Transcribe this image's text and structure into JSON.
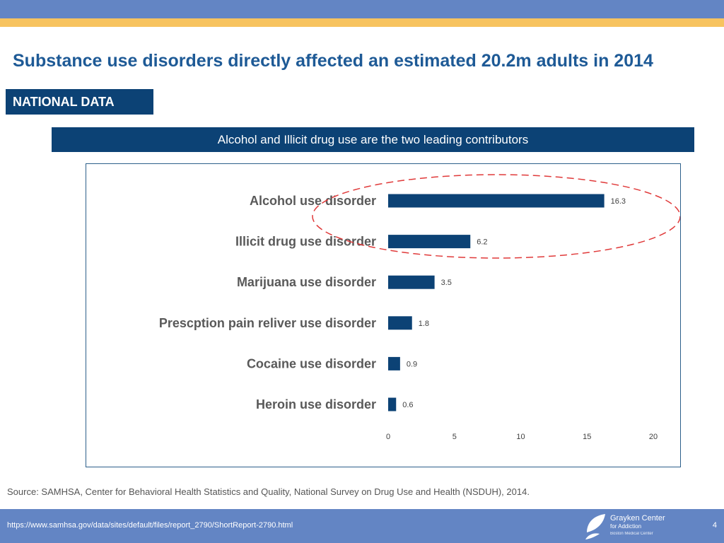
{
  "header": {
    "title": "Substance use disorders directly affected an estimated 20.2m adults in 2014",
    "tag": "NATIONAL DATA",
    "subtitle": "Alcohol and Illicit drug use are the two leading contributors"
  },
  "colors": {
    "bar": "#0c4275",
    "highlight": "#e03a3a",
    "accent_blue": "#6385c4",
    "accent_gold": "#f7c35f"
  },
  "chart_data": {
    "type": "bar",
    "orientation": "horizontal",
    "categories": [
      "Alcohol use disorder",
      "Illicit drug use disorder",
      "Marijuana use disorder",
      "Prescption pain reliver use disorder",
      "Cocaine use disorder",
      "Heroin use disorder"
    ],
    "values": [
      16.3,
      6.2,
      3.5,
      1.8,
      0.9,
      0.6
    ],
    "value_labels": [
      "16.3",
      "6.2",
      "3.5",
      "1.8",
      "0.9",
      "0.6"
    ],
    "xlim": [
      0,
      20
    ],
    "xticks": [
      0,
      5,
      10,
      15,
      20
    ],
    "xtick_labels": [
      "0",
      "5",
      "10",
      "15",
      "20"
    ],
    "highlighted_categories": [
      "Alcohol use disorder",
      "Illicit drug use disorder"
    ],
    "grid": false,
    "title": "",
    "xlabel": "",
    "ylabel": ""
  },
  "footer": {
    "source": "Source: SAMHSA, Center for Behavioral Health Statistics and Quality, National Survey on Drug Use and Health (NSDUH), 2014.",
    "url": "https://www.samhsa.gov/data/sites/default/files/report_2790/ShortReport-2790.html",
    "logo_line1": "Grayken Center",
    "logo_line2": "for Addiction",
    "logo_line3": "Boston Medical Center",
    "page_number": "4",
    "logo_icon": "leaf-icon"
  }
}
